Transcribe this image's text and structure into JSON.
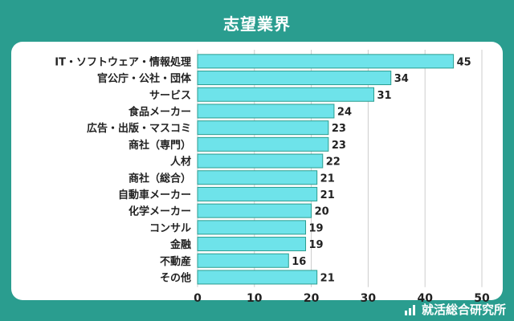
{
  "chart_data": {
    "type": "bar",
    "orientation": "horizontal",
    "title": "志望業界",
    "categories": [
      "IT・ソフトウェア・情報処理",
      "官公庁・公社・団体",
      "サービス",
      "食品メーカー",
      "広告・出版・マスコミ",
      "商社（専門）",
      "人材",
      "商社（総合）",
      "自動車メーカー",
      "化学メーカー",
      "コンサル",
      "金融",
      "不動産",
      "その他"
    ],
    "values": [
      45,
      34,
      31,
      24,
      23,
      23,
      22,
      21,
      21,
      20,
      19,
      19,
      16,
      21
    ],
    "xlim": [
      0,
      50
    ],
    "xticks": [
      0,
      10,
      20,
      30,
      40,
      50
    ],
    "grid": true,
    "bar_color": "#6ee3ea",
    "bar_stroke": "#2a9d8f",
    "grid_color": "#cccccc"
  },
  "brand": {
    "name": "就活総合研究所"
  },
  "colors": {
    "background": "#2a9d8f"
  }
}
